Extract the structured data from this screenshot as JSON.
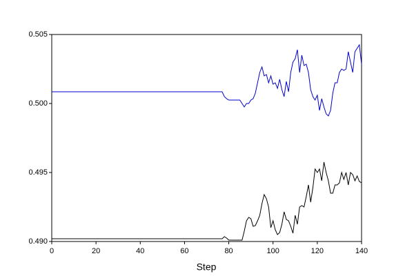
{
  "chart_data": {
    "type": "line",
    "xlabel": "Step",
    "x": [
      0,
      77,
      78,
      79,
      80,
      81,
      82,
      83,
      84,
      85,
      86,
      87,
      88,
      89,
      90,
      91,
      92,
      93,
      94,
      95,
      96,
      97,
      98,
      99,
      100,
      101,
      102,
      103,
      104,
      105,
      106,
      107,
      108,
      109,
      110,
      111,
      112,
      113,
      114,
      115,
      116,
      117,
      118,
      119,
      120,
      121,
      122,
      123,
      124,
      125,
      126,
      127,
      128,
      129,
      130,
      131,
      132,
      133,
      134,
      135,
      136,
      137,
      138,
      139,
      140
    ],
    "series": [
      {
        "color": "#0000cc",
        "values": [
          0.50085,
          0.50085,
          0.5005,
          0.50035,
          0.50025,
          0.50025,
          0.50025,
          0.50025,
          0.50025,
          0.50025,
          0.5,
          0.49975,
          0.5,
          0.5,
          0.50025,
          0.50035,
          0.50075,
          0.5015,
          0.50225,
          0.50265,
          0.502,
          0.5021,
          0.5015,
          0.502,
          0.5014,
          0.5015,
          0.5011,
          0.50175,
          0.501,
          0.5005,
          0.5016,
          0.50085,
          0.50225,
          0.503,
          0.50325,
          0.5039,
          0.50225,
          0.5035,
          0.50275,
          0.50285,
          0.50225,
          0.501,
          0.5005,
          0.50025,
          0.5006,
          0.4995,
          0.50035,
          0.49975,
          0.49925,
          0.4991,
          0.4995,
          0.50075,
          0.5015,
          0.5015,
          0.50225,
          0.5025,
          0.5024,
          0.5025,
          0.50375,
          0.503,
          0.50225,
          0.50375,
          0.504,
          0.50425,
          0.50285
        ]
      },
      {
        "color": "#000000",
        "values": [
          0.4902,
          0.4902,
          0.49035,
          0.49025,
          0.4901,
          0.4901,
          0.4901,
          0.4901,
          0.4901,
          0.4901,
          0.4901,
          0.49075,
          0.4915,
          0.49175,
          0.49165,
          0.4911,
          0.49115,
          0.4915,
          0.4919,
          0.49275,
          0.4934,
          0.4931,
          0.4925,
          0.491,
          0.4915,
          0.49085,
          0.4905,
          0.49065,
          0.49125,
          0.49215,
          0.4916,
          0.4915,
          0.4911,
          0.4906,
          0.4919,
          0.49125,
          0.4925,
          0.4926,
          0.4925,
          0.49325,
          0.4941,
          0.49285,
          0.4939,
          0.49525,
          0.495,
          0.49525,
          0.4944,
          0.49575,
          0.495,
          0.4944,
          0.4935,
          0.4935,
          0.4941,
          0.4941,
          0.49425,
          0.495,
          0.4945,
          0.495,
          0.4941,
          0.495,
          0.49485,
          0.4944,
          0.49475,
          0.49435,
          0.49425
        ]
      }
    ],
    "xlim": [
      0,
      140
    ],
    "xticks": [
      0,
      20,
      40,
      60,
      80,
      100,
      120,
      140
    ],
    "ylim": [
      0.49,
      0.505
    ],
    "yticks": [
      {
        "value": 0.49,
        "label": "0.490"
      },
      {
        "value": 0.495,
        "label": "0.495"
      },
      {
        "value": 0.5,
        "label": "0.500"
      },
      {
        "value": 0.505,
        "label": "0.505"
      }
    ],
    "grid": false
  }
}
